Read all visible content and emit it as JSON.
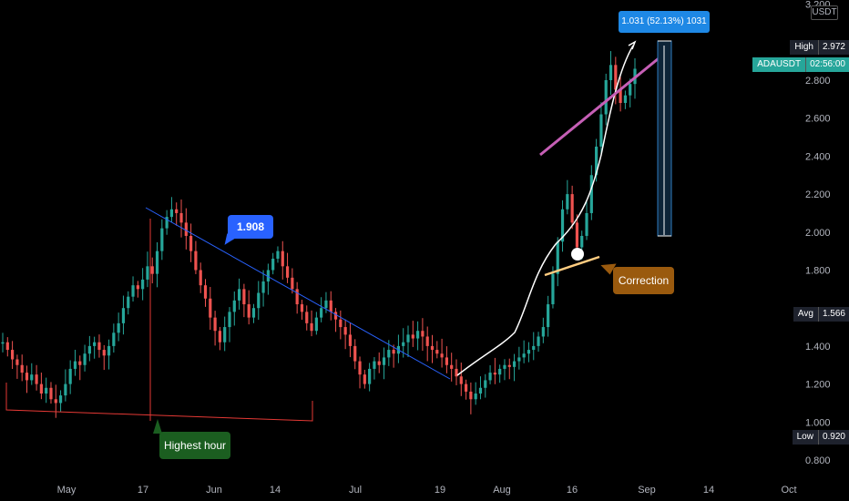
{
  "chart_data": {
    "type": "candlestick",
    "symbol": "ADAUSDT",
    "currency": "USDT",
    "countdown": "02:56:00",
    "ylim": [
      0.72,
      3.2
    ],
    "y_ticks": [
      "3.200",
      "2.800",
      "2.600",
      "2.400",
      "2.200",
      "2.000",
      "1.800",
      "1.400",
      "1.200",
      "1.000",
      "0.800"
    ],
    "x_ticks": [
      "May",
      "17",
      "Jun",
      "14",
      "Jul",
      "19",
      "Aug",
      "16",
      "Sep",
      "14",
      "Oct"
    ],
    "price_labels": [
      {
        "name": "High",
        "value": "2.972",
        "price": 2.972,
        "color": "#1e222d"
      },
      {
        "name": "ADAUSDT",
        "value": "02:56:00",
        "price": 2.88,
        "color": "#26a69a"
      },
      {
        "name": "Avg",
        "value": "1.566",
        "price": 1.566,
        "color": "#1e222d"
      },
      {
        "name": "Low",
        "value": "0.920",
        "price": 0.92,
        "color": "#1e222d"
      }
    ],
    "annotations": {
      "callout_1908": "1.908",
      "measure_label": "1.031 (52.13%) 1031",
      "correction_label": "Correction",
      "highest_hour_label": "Highest hour"
    },
    "candle_series": [
      1.42,
      1.38,
      1.33,
      1.3,
      1.26,
      1.22,
      1.25,
      1.2,
      1.15,
      1.18,
      1.12,
      1.1,
      1.14,
      1.2,
      1.28,
      1.32,
      1.3,
      1.36,
      1.4,
      1.42,
      1.38,
      1.35,
      1.4,
      1.47,
      1.52,
      1.6,
      1.66,
      1.72,
      1.7,
      1.75,
      1.82,
      1.78,
      1.9,
      2.02,
      2.08,
      2.12,
      2.1,
      2.05,
      1.98,
      1.9,
      1.8,
      1.72,
      1.65,
      1.55,
      1.48,
      1.42,
      1.5,
      1.58,
      1.64,
      1.7,
      1.62,
      1.55,
      1.6,
      1.68,
      1.74,
      1.8,
      1.86,
      1.9,
      1.82,
      1.76,
      1.7,
      1.62,
      1.58,
      1.52,
      1.48,
      1.55,
      1.6,
      1.64,
      1.58,
      1.54,
      1.5,
      1.46,
      1.4,
      1.32,
      1.25,
      1.2,
      1.28,
      1.32,
      1.3,
      1.34,
      1.38,
      1.36,
      1.4,
      1.42,
      1.46,
      1.44,
      1.48,
      1.45,
      1.4,
      1.38,
      1.36,
      1.34,
      1.3,
      1.28,
      1.24,
      1.2,
      1.16,
      1.12,
      1.15,
      1.18,
      1.22,
      1.26,
      1.25,
      1.28,
      1.3,
      1.29,
      1.32,
      1.34,
      1.36,
      1.38,
      1.4,
      1.45,
      1.5,
      1.62,
      1.78,
      1.95,
      2.12,
      2.2,
      2.05,
      1.92,
      1.98,
      2.1,
      2.3,
      2.45,
      2.62,
      2.8,
      2.88,
      2.75,
      2.68,
      2.72,
      2.78,
      2.86
    ]
  }
}
